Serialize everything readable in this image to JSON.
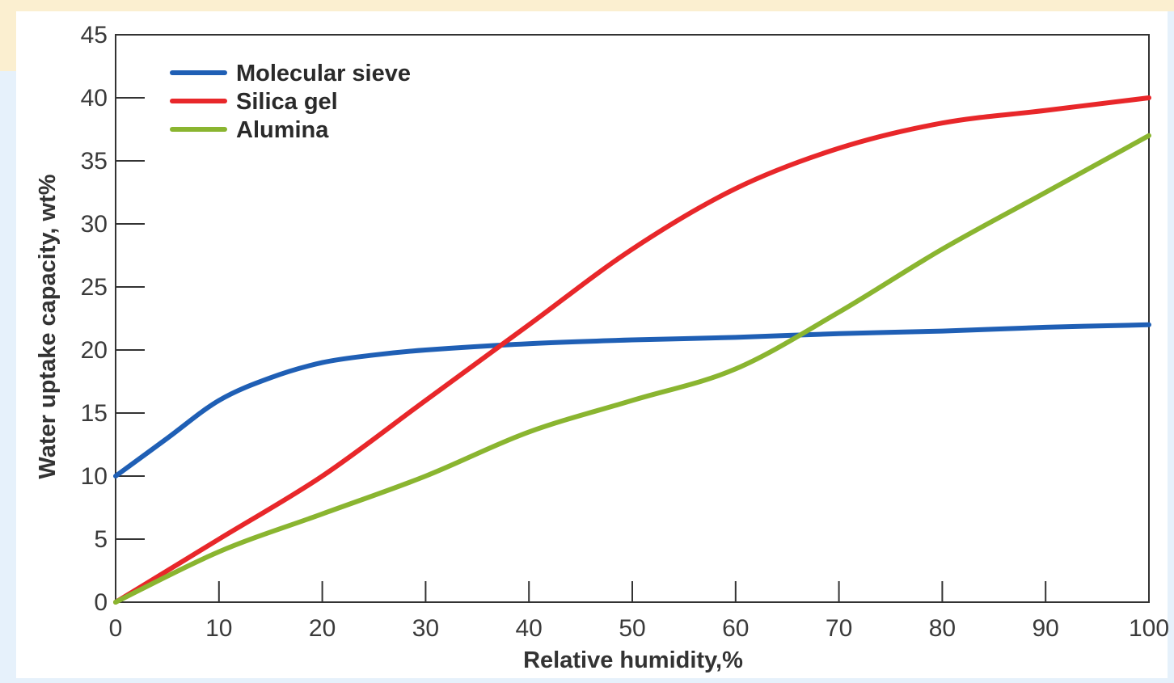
{
  "chart_data": {
    "type": "line",
    "xlabel": "Relative humidity,%",
    "ylabel": "Water uptake capacity, wt%",
    "xlim": [
      0,
      100
    ],
    "ylim": [
      0,
      45
    ],
    "x_ticks": [
      0,
      10,
      20,
      30,
      40,
      50,
      60,
      70,
      80,
      90,
      100
    ],
    "y_ticks": [
      0,
      5,
      10,
      15,
      20,
      25,
      30,
      35,
      40,
      45
    ],
    "legend_position": "top-left",
    "grid": false,
    "series": [
      {
        "name": "Molecular sieve",
        "color": "#1f5fb5",
        "points": [
          [
            0,
            10
          ],
          [
            5,
            13
          ],
          [
            10,
            16
          ],
          [
            15,
            17.8
          ],
          [
            20,
            19
          ],
          [
            25,
            19.6
          ],
          [
            30,
            20
          ],
          [
            40,
            20.5
          ],
          [
            50,
            20.8
          ],
          [
            60,
            21
          ],
          [
            70,
            21.3
          ],
          [
            80,
            21.5
          ],
          [
            90,
            21.8
          ],
          [
            100,
            22
          ]
        ]
      },
      {
        "name": "Silica gel",
        "color": "#e8272a",
        "points": [
          [
            0,
            0
          ],
          [
            10,
            5
          ],
          [
            20,
            10
          ],
          [
            30,
            16
          ],
          [
            40,
            22
          ],
          [
            50,
            28
          ],
          [
            60,
            32.8
          ],
          [
            70,
            36
          ],
          [
            80,
            38
          ],
          [
            90,
            39
          ],
          [
            100,
            40
          ]
        ]
      },
      {
        "name": "Alumina",
        "color": "#8ab530",
        "points": [
          [
            0,
            0
          ],
          [
            10,
            4
          ],
          [
            20,
            7
          ],
          [
            30,
            10
          ],
          [
            40,
            13.5
          ],
          [
            50,
            16
          ],
          [
            60,
            18.5
          ],
          [
            70,
            23
          ],
          [
            80,
            28
          ],
          [
            90,
            32.5
          ],
          [
            100,
            37
          ]
        ]
      }
    ]
  }
}
